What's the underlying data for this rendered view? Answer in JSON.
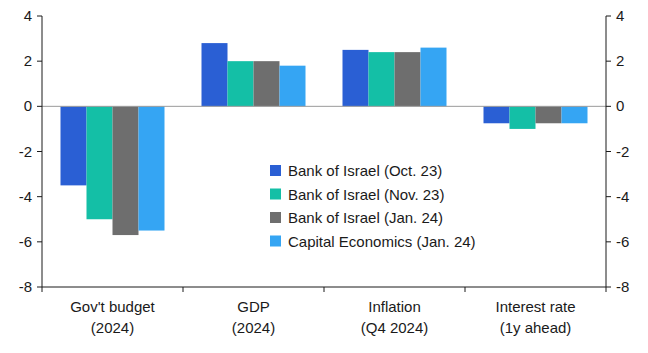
{
  "chart_data": {
    "type": "bar",
    "categories": [
      "Gov't budget (2024)",
      "GDP (2024)",
      "Inflation (Q4 2024)",
      "Interest rate (1y ahead)"
    ],
    "series": [
      {
        "name": "Bank of Israel (Oct. 23)",
        "color": "#2a5fd4",
        "values": [
          -3.5,
          2.8,
          2.5,
          -0.75
        ]
      },
      {
        "name": "Bank of Israel (Nov. 23)",
        "color": "#14bfa6",
        "values": [
          -5.0,
          2.0,
          2.4,
          -1.0
        ]
      },
      {
        "name": "Bank of Israel (Jan. 24)",
        "color": "#6e6e6e",
        "values": [
          -5.7,
          2.0,
          2.4,
          -0.75
        ]
      },
      {
        "name": "Capital Economics (Jan. 24)",
        "color": "#35a5f3",
        "values": [
          -5.5,
          1.8,
          2.6,
          -0.75
        ]
      }
    ],
    "ylim": [
      -8,
      4
    ],
    "yticks": [
      -8,
      -6,
      -4,
      -2,
      0,
      2,
      4
    ],
    "y2lim": [
      -8,
      4
    ],
    "y2ticks": [
      -8,
      -6,
      -4,
      -2,
      0,
      2,
      4
    ],
    "grid": false,
    "legend": "right"
  }
}
